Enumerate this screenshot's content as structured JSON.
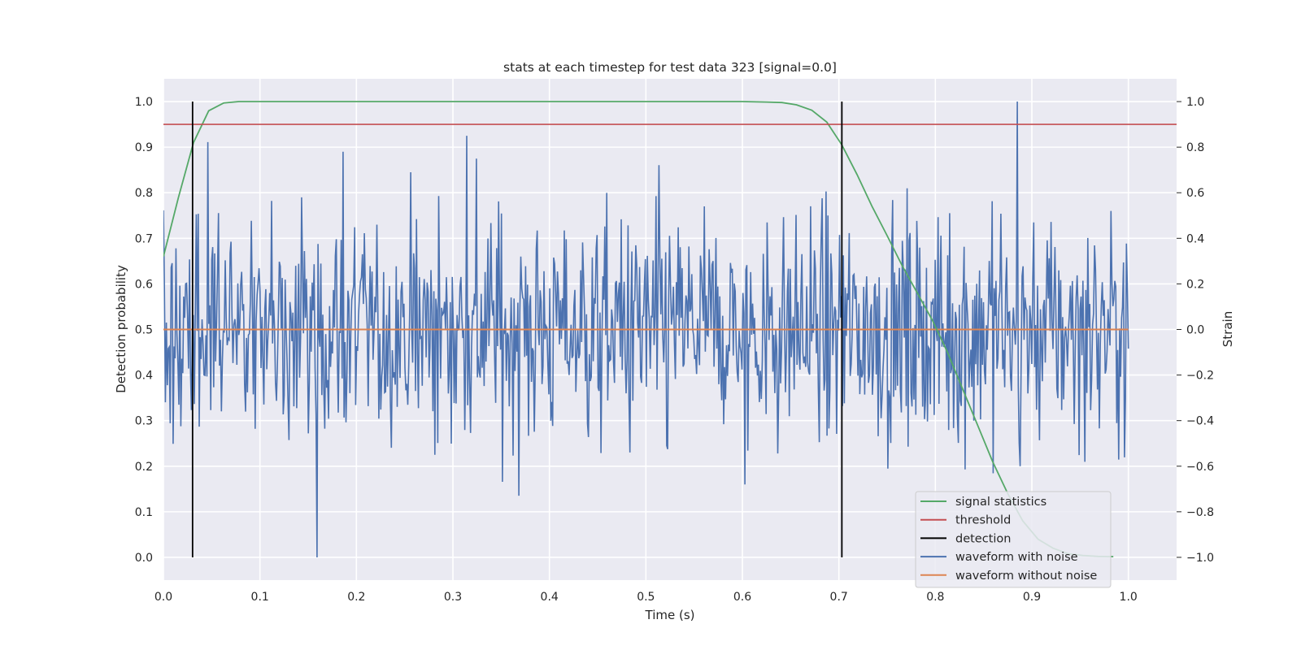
{
  "chart_data": {
    "type": "line",
    "title": "stats at each timestep for test data 323 [signal=0.0]",
    "xlabel": "Time (s)",
    "ylabel_left": "Detection probability",
    "ylabel_right": "Strain",
    "xlim": [
      0.0,
      1.05
    ],
    "ylim_left": [
      -0.05,
      1.05
    ],
    "ylim_right": [
      -1.1,
      1.1
    ],
    "x_ticks": [
      "0.0",
      "0.1",
      "0.2",
      "0.3",
      "0.4",
      "0.5",
      "0.6",
      "0.7",
      "0.8",
      "0.9",
      "1.0"
    ],
    "y_left_ticks": [
      "0.0",
      "0.1",
      "0.2",
      "0.3",
      "0.4",
      "0.5",
      "0.6",
      "0.7",
      "0.8",
      "0.9",
      "1.0"
    ],
    "y_right_ticks": [
      "−1.0",
      "−0.8",
      "−0.6",
      "−0.4",
      "−0.2",
      "0.0",
      "0.2",
      "0.4",
      "0.6",
      "0.8",
      "1.0"
    ],
    "grid": true,
    "legend_position": "lower-right",
    "colors": {
      "background": "#eaeaf2",
      "grid": "#ffffff",
      "signal_statistics": "#55a868",
      "threshold": "#c44e52",
      "detection": "#000000",
      "waveform_with_noise": "#4c72b0",
      "waveform_without_noise": "#dd8452"
    },
    "series": [
      {
        "name": "signal statistics",
        "axis": "left",
        "x": [
          0.0,
          0.0156,
          0.0312,
          0.0469,
          0.0625,
          0.0781,
          0.1,
          0.2,
          0.3,
          0.4,
          0.5,
          0.6,
          0.625,
          0.641,
          0.656,
          0.672,
          0.6875,
          0.7031,
          0.7188,
          0.7344,
          0.75,
          0.7656,
          0.7813,
          0.7969,
          0.8125,
          0.8281,
          0.8438,
          0.8594,
          0.875,
          0.8906,
          0.9063,
          0.9219,
          0.9375,
          0.9531,
          0.9688,
          0.9844
        ],
        "values": [
          0.66,
          0.79,
          0.91,
          0.98,
          0.997,
          1.0,
          1.0,
          1.0,
          1.0,
          1.0,
          1.0,
          1.0,
          0.999,
          0.998,
          0.993,
          0.981,
          0.955,
          0.905,
          0.84,
          0.77,
          0.706,
          0.64,
          0.58,
          0.52,
          0.45,
          0.37,
          0.29,
          0.21,
          0.14,
          0.08,
          0.04,
          0.02,
          0.008,
          0.004,
          0.002,
          0.0015
        ]
      },
      {
        "name": "threshold",
        "axis": "left",
        "x": [
          0.0,
          1.05
        ],
        "values": [
          0.95,
          0.95
        ]
      },
      {
        "name": "detection",
        "axis": "left",
        "x": [
          0.0302,
          0.7031
        ],
        "ymin": 0.0,
        "ymax": 1.0
      },
      {
        "name": "waveform with noise",
        "axis": "right",
        "points": 1000,
        "x_range": [
          0.0,
          1.0
        ],
        "distribution": "gaussian noise around 0.0, sd about 0.25",
        "notable_values": [
          {
            "x": 0.159,
            "value": -1.0
          },
          {
            "x": 0.885,
            "value": 1.0
          },
          {
            "x": 0.314,
            "value": 0.85
          },
          {
            "x": 0.186,
            "value": 0.78
          },
          {
            "x": 0.888,
            "value": -0.6
          },
          {
            "x": 0.603,
            "value": -0.68
          }
        ]
      },
      {
        "name": "waveform without noise",
        "axis": "right",
        "x": [
          0.0,
          1.0
        ],
        "values": [
          0.0,
          0.0
        ]
      }
    ],
    "legend": [
      "signal statistics",
      "threshold",
      "detection",
      "waveform with noise",
      "waveform without noise"
    ]
  }
}
